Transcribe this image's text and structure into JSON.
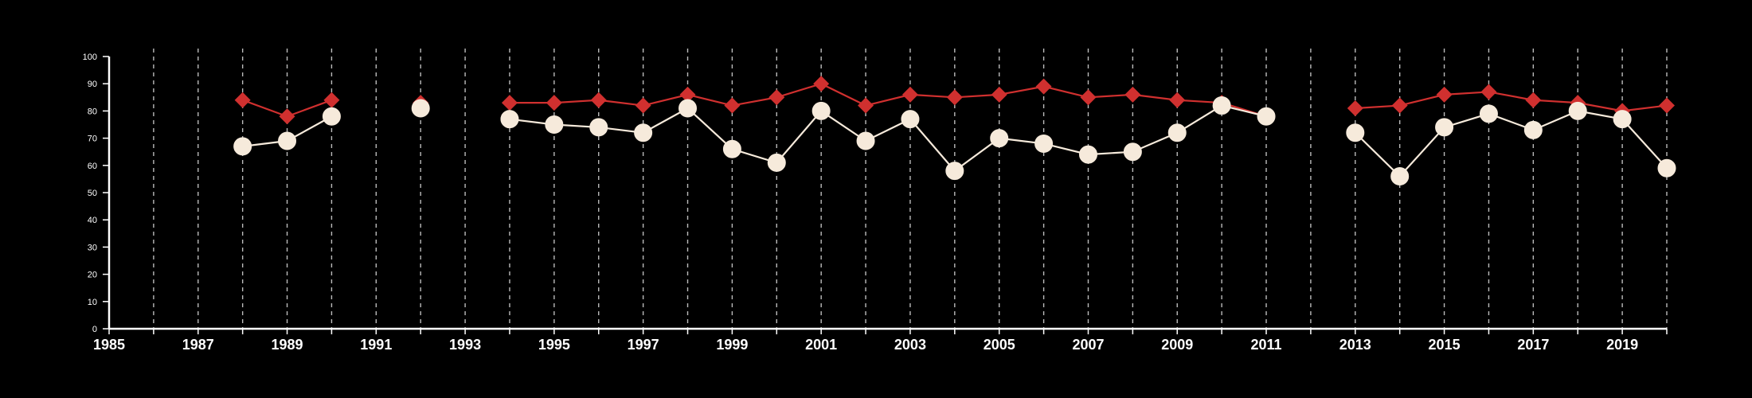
{
  "chart_data": {
    "type": "line",
    "title": "",
    "xlabel": "",
    "ylabel": "",
    "xlim": [
      1985,
      2020
    ],
    "ylim": [
      0,
      100
    ],
    "x_ticks": [
      1985,
      1987,
      1989,
      1991,
      1993,
      1995,
      1997,
      1999,
      2001,
      2003,
      2005,
      2007,
      2009,
      2011,
      2013,
      2015,
      2017,
      2019
    ],
    "y_ticks": [
      0,
      10,
      20,
      30,
      40,
      50,
      60,
      70,
      80,
      90,
      100
    ],
    "grid": "vertical dashed lines at every year",
    "x": [
      1985,
      1986,
      1987,
      1988,
      1989,
      1990,
      1991,
      1992,
      1993,
      1994,
      1995,
      1996,
      1997,
      1998,
      1999,
      2000,
      2001,
      2002,
      2003,
      2004,
      2005,
      2006,
      2007,
      2008,
      2009,
      2010,
      2011,
      2012,
      2013,
      2014,
      2015,
      2016,
      2017,
      2018,
      2019,
      2020
    ],
    "series": [
      {
        "marker": "diamond",
        "color": "#d0302f",
        "values": [
          null,
          null,
          null,
          84,
          78,
          84,
          null,
          83,
          null,
          83,
          83,
          84,
          82,
          86,
          82,
          85,
          90,
          82,
          86,
          85,
          86,
          89,
          85,
          86,
          84,
          83,
          78,
          null,
          81,
          82,
          86,
          87,
          84,
          83,
          80,
          82
        ]
      },
      {
        "marker": "circle",
        "color": "#f6eadb",
        "values": [
          null,
          null,
          null,
          67,
          69,
          78,
          null,
          81,
          null,
          77,
          75,
          74,
          72,
          81,
          66,
          61,
          80,
          69,
          77,
          58,
          70,
          68,
          64,
          65,
          72,
          82,
          78,
          null,
          72,
          56,
          74,
          79,
          73,
          80,
          77,
          59
        ]
      }
    ]
  }
}
